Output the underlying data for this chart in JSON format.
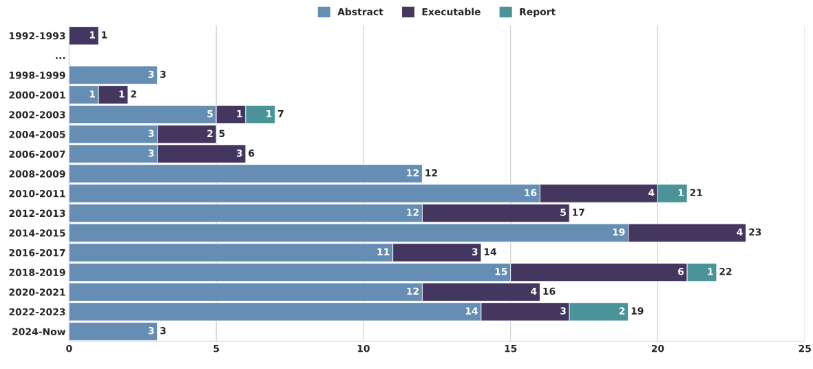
{
  "chart_data": {
    "type": "bar",
    "orientation": "horizontal",
    "stacked": true,
    "categories": [
      "1992-1993",
      "...",
      "1998-1999",
      "2000-2001",
      "2002-2003",
      "2004-2005",
      "2006-2007",
      "2008-2009",
      "2010-2011",
      "2012-2013",
      "2014-2015",
      "2016-2017",
      "2018-2019",
      "2020-2021",
      "2022-2023",
      "2024-Now"
    ],
    "series": [
      {
        "name": "Abstract",
        "color": "#668db3",
        "values": [
          null,
          null,
          3,
          1,
          5,
          3,
          3,
          12,
          16,
          12,
          19,
          11,
          15,
          12,
          14,
          3
        ]
      },
      {
        "name": "Executable",
        "color": "#433760",
        "values": [
          1,
          null,
          null,
          1,
          1,
          2,
          3,
          null,
          4,
          5,
          4,
          3,
          6,
          4,
          3,
          null
        ]
      },
      {
        "name": "Report",
        "color": "#4a9399",
        "values": [
          null,
          null,
          null,
          null,
          1,
          null,
          null,
          null,
          1,
          null,
          null,
          null,
          1,
          null,
          2,
          null
        ]
      }
    ],
    "totals": [
      "1",
      null,
      "3",
      "2",
      "7",
      "5",
      "6",
      "12",
      "21",
      "17",
      "23",
      "14",
      "22",
      "16",
      "19",
      "3"
    ],
    "data_labels": true,
    "xlim": [
      0,
      25
    ],
    "xticks": [
      0,
      5,
      10,
      15,
      20,
      25
    ],
    "grid": "x",
    "legend": "top"
  }
}
